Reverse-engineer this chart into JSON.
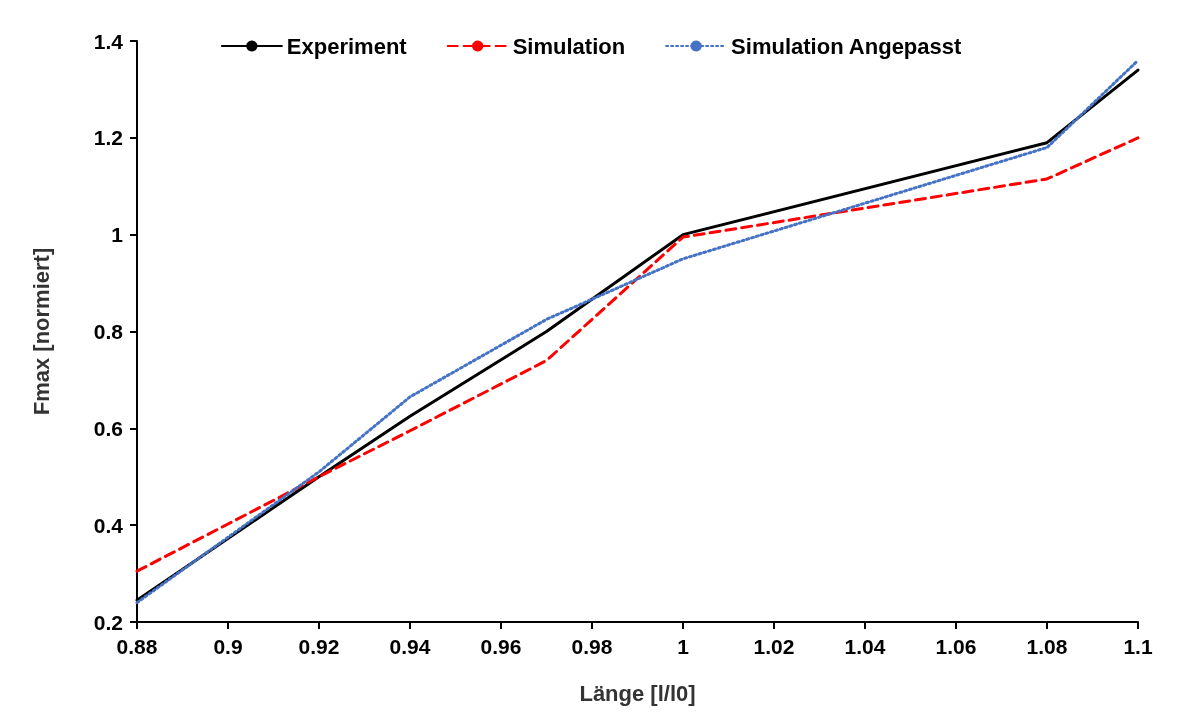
{
  "chart_data": {
    "type": "line",
    "xlabel": "Länge [l/l0]",
    "ylabel": "Fmax [normiert]",
    "x": [
      0.88,
      0.92,
      0.94,
      0.97,
      1.0,
      1.08,
      1.1
    ],
    "series": [
      {
        "name": "Experiment",
        "color": "#000000",
        "line_style": "solid",
        "values": [
          0.245,
          0.5,
          0.625,
          0.8,
          1.0,
          1.19,
          1.34
        ]
      },
      {
        "name": "Simulation",
        "color": "#ff0000",
        "line_style": "dashed",
        "values": [
          0.305,
          0.5,
          0.595,
          0.74,
          0.995,
          1.115,
          1.2
        ]
      },
      {
        "name": "Simulation Angepasst",
        "color": "#4472c4",
        "line_style": "dotted",
        "values": [
          0.24,
          0.51,
          0.665,
          0.825,
          0.95,
          1.18,
          1.36
        ]
      }
    ],
    "xlim": [
      0.88,
      1.1
    ],
    "xticks": [
      0.88,
      0.9,
      0.92,
      0.94,
      0.96,
      0.98,
      1,
      1.02,
      1.04,
      1.06,
      1.08,
      1.1
    ],
    "ylim": [
      0.2,
      1.4
    ],
    "yticks": [
      0.2,
      0.4,
      0.6,
      0.8,
      1,
      1.2,
      1.4
    ],
    "grid": false,
    "legend": "top",
    "marker": "none"
  }
}
